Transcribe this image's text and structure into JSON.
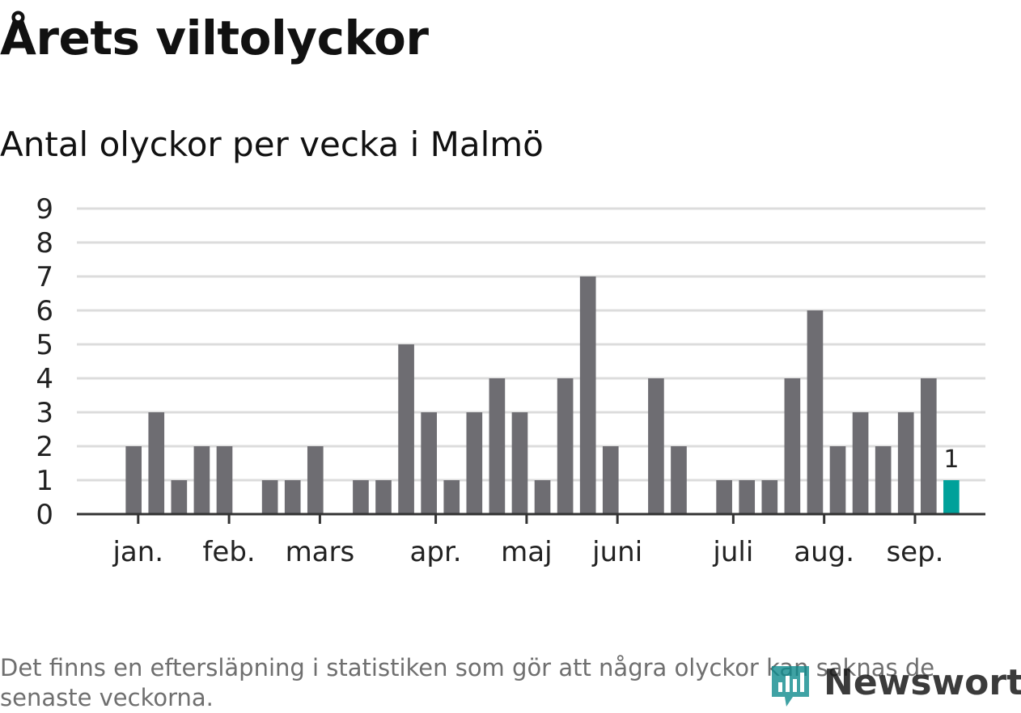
{
  "page": {
    "title": "Årets viltolyckor",
    "subtitle": "Antal olyckor per vecka i Malmö",
    "note": "Det finns en eftersläpning i statistiken som gör att några olyckor kan saknas de senaste veckorna.",
    "logo_text": "Newsworthy"
  },
  "colors": {
    "bar": "#6e6d72",
    "highlight": "#00a19a",
    "grid": "#dcdcdc",
    "axis": "#333333",
    "brand": "#0f8b8d"
  },
  "icons": {
    "logo": "newsworthy-chart-icon"
  },
  "chart_data": {
    "type": "bar",
    "title": "Antal olyckor per vecka i Malmö",
    "xlabel": "",
    "ylabel": "",
    "ylim": [
      0,
      9
    ],
    "yticks": [
      0,
      1,
      2,
      3,
      4,
      5,
      6,
      7,
      8,
      9
    ],
    "grid": true,
    "weeks": [
      1,
      2,
      3,
      4,
      5,
      6,
      7,
      8,
      9,
      10,
      11,
      12,
      13,
      14,
      15,
      16,
      17,
      18,
      19,
      20,
      21,
      22,
      23,
      24,
      25,
      26,
      27,
      28,
      29,
      30,
      31,
      32,
      33,
      34,
      35,
      36,
      37,
      38,
      39,
      40
    ],
    "values": [
      0,
      0,
      2,
      3,
      1,
      2,
      2,
      0,
      1,
      1,
      2,
      0,
      1,
      1,
      5,
      3,
      1,
      3,
      4,
      3,
      1,
      4,
      7,
      2,
      0,
      4,
      2,
      0,
      1,
      1,
      1,
      4,
      6,
      2,
      3,
      2,
      3,
      4,
      1,
      0
    ],
    "highlight_index": 38,
    "highlight_label": "1",
    "month_ticks": [
      {
        "label": "jan.",
        "week": 3.2
      },
      {
        "label": "feb.",
        "week": 7.2
      },
      {
        "label": "mars",
        "week": 11.2
      },
      {
        "label": "apr.",
        "week": 16.3
      },
      {
        "label": "maj",
        "week": 20.3
      },
      {
        "label": "juni",
        "week": 24.3
      },
      {
        "label": "juli",
        "week": 29.4
      },
      {
        "label": "aug.",
        "week": 33.4
      },
      {
        "label": "sep.",
        "week": 37.4
      }
    ]
  }
}
